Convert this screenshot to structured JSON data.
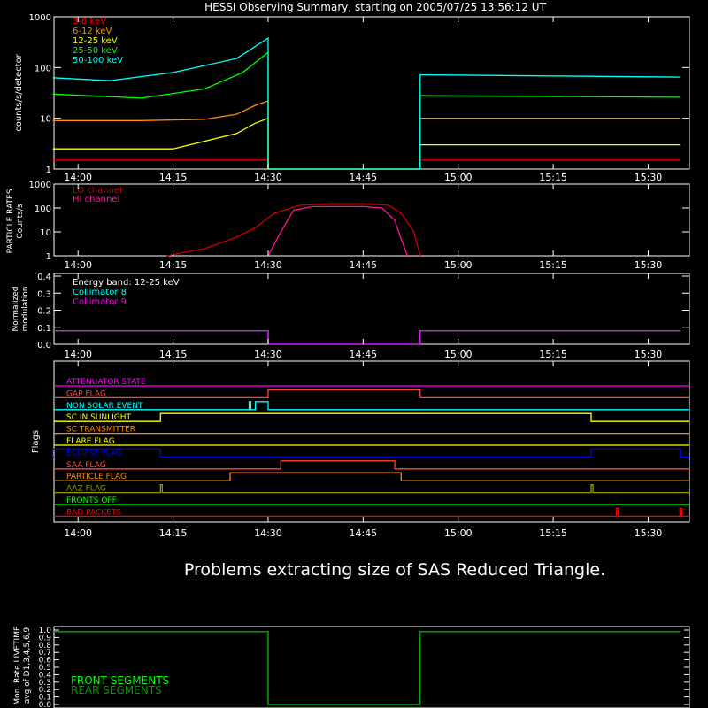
{
  "title": "HESSI Observing Summary, starting on 2005/07/25 13:56:12 UT",
  "message": "Problems extracting size of SAS Reduced Triangle.",
  "time_ticks": [
    "14:00",
    "14:15",
    "14:30",
    "14:45",
    "15:00",
    "15:15",
    "15:30"
  ],
  "colors": {
    "bg": "#000000",
    "axis": "#ffffff",
    "e3_6": "#ff0000",
    "e6_12": "#ff8c00",
    "e12_25": "#ffff00",
    "e25_50": "#00ff00",
    "e50_100": "#00ffff",
    "lo": "#cc0000",
    "hi": "#ff1493",
    "coll8": "#00ffff",
    "coll9": "#ff00ff",
    "front": "#00ff00",
    "rear": "#009900"
  },
  "panels": {
    "counts": {
      "ylabel": "counts/s/detector",
      "yticks": [
        "1",
        "10",
        "100",
        "1000"
      ],
      "legend": [
        "3-6 keV",
        "6-12 keV",
        "12-25 keV",
        "25-50 keV",
        "50-100 keV"
      ]
    },
    "particle": {
      "ylabel1": "PARTICLE RATES",
      "ylabel2": "Counts/s",
      "yticks": [
        "1",
        "10",
        "100",
        "1000"
      ],
      "legend": [
        "LO channel",
        "HI channel"
      ]
    },
    "modulation": {
      "ylabel1": "Normalized",
      "ylabel2": "modulation",
      "yticks": [
        "0.0",
        "0.1",
        "0.2",
        "0.3",
        "0.4"
      ],
      "legend": [
        "Energy band: 12-25 keV",
        "Collimator 8",
        "Collimator 9"
      ]
    },
    "flags": {
      "ylabel": "Flags",
      "items": [
        "ATTENUATOR STATE",
        "GAP FLAG",
        "NON SOLAR EVENT",
        "SC IN SUNLIGHT",
        "SC TRANSMITTER",
        "FLARE FLAG",
        "ECLIPSE FLAG",
        "SAA FLAG",
        "PARTICLE FLAG",
        "AAZ FLAG",
        "FRONTS OFF",
        "BAD PACKETS"
      ]
    },
    "livetime": {
      "ylabel1": "Mon. Rate LIVETIME",
      "ylabel2": "avg of D1,3,4,5,6,9",
      "yticks": [
        "0.0",
        "0.1",
        "0.2",
        "0.3",
        "0.4",
        "0.5",
        "0.6",
        "0.7",
        "0.8",
        "0.9",
        "1.0"
      ],
      "legend": [
        "FRONT SEGMENTS",
        "REAR SEGMENTS"
      ]
    }
  },
  "chart_data": [
    {
      "type": "line",
      "title": "HESSI Observing Summary, starting on 2005/07/25 13:56:12 UT",
      "ylabel": "counts/s/detector",
      "yscale": "log",
      "ylim": [
        1,
        1000
      ],
      "xlabel": "",
      "x_ticks": [
        "14:00",
        "14:15",
        "14:30",
        "14:45",
        "15:00",
        "15:15",
        "15:30"
      ],
      "legend_position": "top-left",
      "series": [
        {
          "name": "3-6 keV",
          "points": [
            [
              "13:56",
              1.5
            ],
            [
              "14:10",
              1.5
            ],
            [
              "14:30",
              1.5
            ],
            [
              "14:30",
              1
            ],
            [
              "14:54",
              1
            ],
            [
              "14:54",
              1.5
            ],
            [
              "15:35",
              1.5
            ]
          ]
        },
        {
          "name": "6-12 keV",
          "points": [
            [
              "13:56",
              9
            ],
            [
              "14:10",
              9
            ],
            [
              "14:20",
              9.5
            ],
            [
              "14:25",
              12
            ],
            [
              "14:28",
              18
            ],
            [
              "14:30",
              22
            ],
            [
              "14:30",
              1
            ],
            [
              "14:54",
              1
            ],
            [
              "14:54",
              10
            ],
            [
              "15:35",
              10
            ]
          ]
        },
        {
          "name": "12-25 keV",
          "points": [
            [
              "13:56",
              2.5
            ],
            [
              "14:15",
              2.5
            ],
            [
              "14:25",
              5
            ],
            [
              "14:28",
              8
            ],
            [
              "14:30",
              10
            ],
            [
              "14:30",
              1
            ],
            [
              "14:54",
              1
            ],
            [
              "14:54",
              3
            ],
            [
              "15:35",
              3
            ]
          ]
        },
        {
          "name": "25-50 keV",
          "points": [
            [
              "13:56",
              30
            ],
            [
              "14:10",
              25
            ],
            [
              "14:20",
              38
            ],
            [
              "14:26",
              80
            ],
            [
              "14:30",
              200
            ],
            [
              "14:30",
              1
            ],
            [
              "14:54",
              1
            ],
            [
              "14:54",
              28
            ],
            [
              "15:35",
              26
            ]
          ]
        },
        {
          "name": "50-100 keV",
          "points": [
            [
              "13:56",
              63
            ],
            [
              "14:05",
              55
            ],
            [
              "14:15",
              80
            ],
            [
              "14:25",
              150
            ],
            [
              "14:30",
              380
            ],
            [
              "14:30",
              1
            ],
            [
              "14:54",
              1
            ],
            [
              "14:54",
              72
            ],
            [
              "15:35",
              65
            ]
          ]
        }
      ]
    },
    {
      "type": "line",
      "ylabel": "PARTICLE RATES Counts/s",
      "yscale": "log",
      "ylim": [
        1,
        1000
      ],
      "x_ticks": [
        "14:00",
        "14:15",
        "14:30",
        "14:45",
        "15:00",
        "15:15",
        "15:30"
      ],
      "legend_position": "top-left",
      "series": [
        {
          "name": "LO channel",
          "points": [
            [
              "14:14",
              1
            ],
            [
              "14:20",
              2
            ],
            [
              "14:25",
              6
            ],
            [
              "14:28",
              15
            ],
            [
              "14:31",
              60
            ],
            [
              "14:35",
              130
            ],
            [
              "14:40",
              150
            ],
            [
              "14:45",
              150
            ],
            [
              "14:49",
              130
            ],
            [
              "14:51",
              60
            ],
            [
              "14:53",
              10
            ],
            [
              "14:54",
              1
            ]
          ]
        },
        {
          "name": "HI channel",
          "points": [
            [
              "14:30",
              1
            ],
            [
              "14:32",
              10
            ],
            [
              "14:34",
              80
            ],
            [
              "14:37",
              115
            ],
            [
              "14:45",
              115
            ],
            [
              "14:48",
              100
            ],
            [
              "14:50",
              30
            ],
            [
              "14:51",
              5
            ],
            [
              "14:52",
              1
            ]
          ]
        }
      ]
    },
    {
      "type": "line",
      "ylabel": "Normalized modulation",
      "ylim": [
        0,
        0.4
      ],
      "x_ticks": [
        "14:00",
        "14:15",
        "14:30",
        "14:45",
        "15:00",
        "15:15",
        "15:30"
      ],
      "legend_position": "top-left",
      "annotations": [
        "Energy band: 12-25 keV"
      ],
      "series": [
        {
          "name": "Collimator 8",
          "points": [
            [
              "13:56",
              0.08
            ],
            [
              "14:30",
              0.08
            ],
            [
              "14:30",
              0
            ],
            [
              "14:54",
              0
            ],
            [
              "14:54",
              0.08
            ],
            [
              "15:35",
              0.08
            ]
          ]
        },
        {
          "name": "Collimator 9",
          "points": [
            [
              "13:56",
              0.08
            ],
            [
              "14:30",
              0.08
            ],
            [
              "14:30",
              0
            ],
            [
              "14:54",
              0
            ],
            [
              "14:54",
              0.08
            ],
            [
              "15:35",
              0.08
            ]
          ]
        }
      ]
    },
    {
      "type": "line",
      "ylabel": "Flags",
      "x_ticks": [
        "14:00",
        "14:15",
        "14:30",
        "14:45",
        "15:00",
        "15:15",
        "15:30"
      ],
      "series": [
        {
          "name": "ATTENUATOR STATE",
          "on": []
        },
        {
          "name": "GAP FLAG",
          "on": [
            [
              "14:30",
              "14:54"
            ]
          ]
        },
        {
          "name": "NON SOLAR EVENT",
          "on": [
            [
              "14:27",
              "14:27"
            ],
            [
              "14:28",
              "14:30"
            ]
          ]
        },
        {
          "name": "SC IN SUNLIGHT",
          "on": [
            [
              "14:13",
              "15:21"
            ]
          ]
        },
        {
          "name": "SC TRANSMITTER",
          "on": []
        },
        {
          "name": "FLARE FLAG",
          "on": []
        },
        {
          "name": "ECLIPSE FLAG",
          "on": [
            [
              "13:56",
              "14:13"
            ],
            [
              "15:21",
              "15:35"
            ]
          ]
        },
        {
          "name": "SAA FLAG",
          "on": [
            [
              "14:32",
              "14:50"
            ]
          ]
        },
        {
          "name": "PARTICLE FLAG",
          "on": [
            [
              "14:24",
              "14:51"
            ]
          ]
        },
        {
          "name": "AAZ FLAG",
          "on": [
            [
              "14:13",
              "14:13"
            ],
            [
              "15:21",
              "15:21"
            ]
          ]
        },
        {
          "name": "FRONTS OFF",
          "on": []
        },
        {
          "name": "BAD PACKETS",
          "on": [
            [
              "15:25",
              "15:25"
            ],
            [
              "15:35",
              "15:35"
            ]
          ]
        }
      ]
    },
    {
      "type": "line",
      "ylabel": "Mon. Rate LIVETIME avg of D1,3,4,5,6,9",
      "ylim": [
        0,
        1.0
      ],
      "x_ticks": [
        "14:00",
        "14:15",
        "14:30",
        "14:45",
        "15:00",
        "15:15",
        "15:30"
      ],
      "legend_position": "bottom-left",
      "series": [
        {
          "name": "FRONT SEGMENTS",
          "points": [
            [
              "13:56",
              0.98
            ],
            [
              "14:30",
              0.98
            ],
            [
              "14:30",
              0
            ],
            [
              "14:54",
              0
            ],
            [
              "14:54",
              0.98
            ],
            [
              "15:35",
              0.98
            ]
          ]
        },
        {
          "name": "REAR SEGMENTS",
          "points": [
            [
              "13:56",
              0.98
            ],
            [
              "14:30",
              0.98
            ],
            [
              "14:30",
              0
            ],
            [
              "14:54",
              0
            ],
            [
              "14:54",
              0.98
            ],
            [
              "15:35",
              0.98
            ]
          ]
        }
      ]
    }
  ]
}
